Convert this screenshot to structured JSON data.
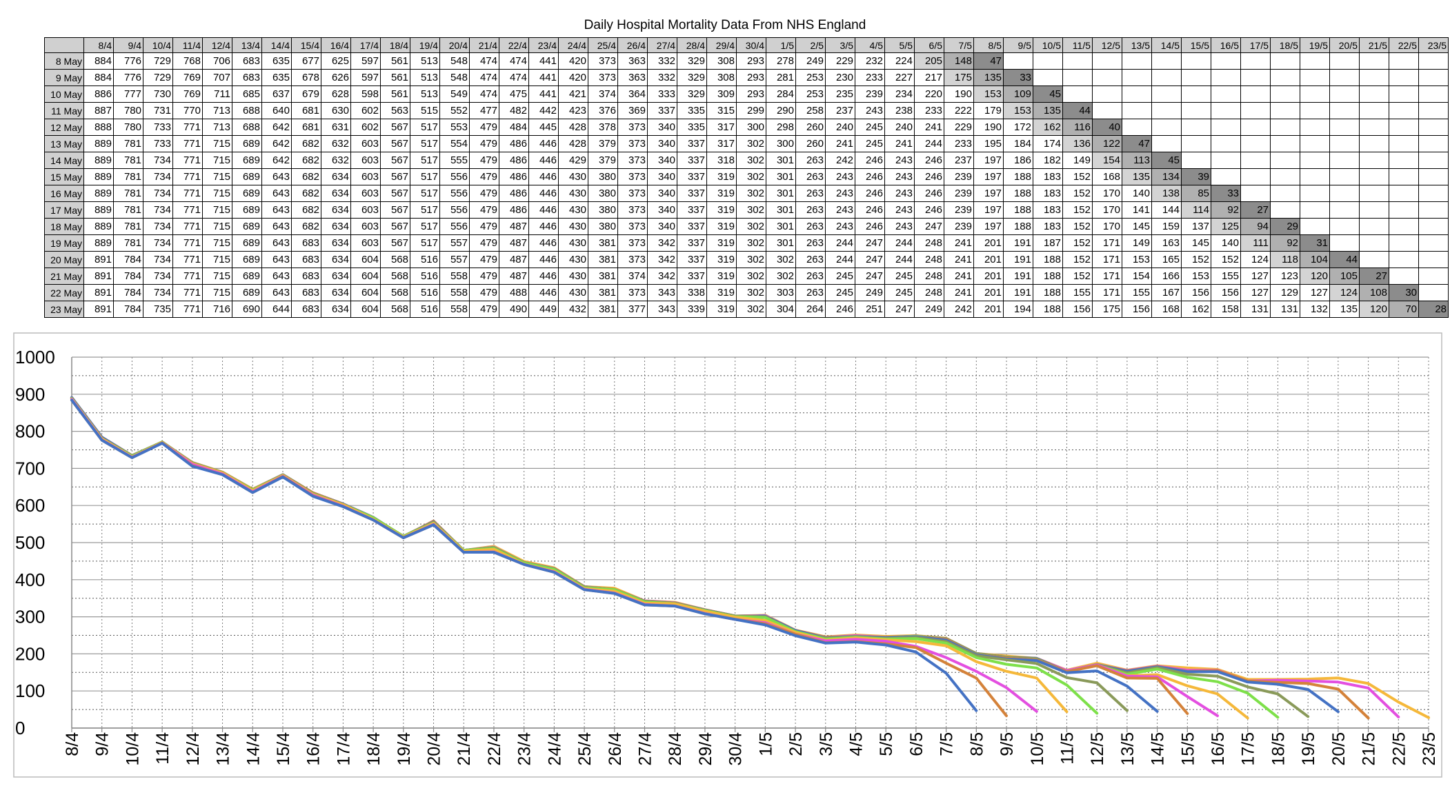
{
  "chart_data": {
    "type": "line",
    "title": "Daily Hospital Mortality Data From NHS England",
    "categories": [
      "8/4",
      "9/4",
      "10/4",
      "11/4",
      "12/4",
      "13/4",
      "14/4",
      "15/4",
      "16/4",
      "17/4",
      "18/4",
      "19/4",
      "20/4",
      "21/4",
      "22/4",
      "23/4",
      "24/4",
      "25/4",
      "26/4",
      "27/4",
      "28/4",
      "29/4",
      "30/4",
      "1/5",
      "2/5",
      "3/5",
      "4/5",
      "5/5",
      "6/5",
      "7/5",
      "8/5",
      "9/5",
      "10/5",
      "11/5",
      "12/5",
      "13/5",
      "14/5",
      "15/5",
      "16/5",
      "17/5",
      "18/5",
      "19/5",
      "20/5",
      "21/5",
      "22/5",
      "23/5"
    ],
    "ylim": [
      0,
      1000
    ],
    "yticks": [
      0,
      100,
      200,
      300,
      400,
      500,
      600,
      700,
      800,
      900,
      1000
    ],
    "grid": true,
    "series": [
      {
        "name": "8 May",
        "color": "#4472c4",
        "values": [
          884,
          776,
          729,
          768,
          706,
          683,
          635,
          677,
          625,
          597,
          561,
          513,
          548,
          474,
          474,
          441,
          420,
          373,
          363,
          332,
          329,
          308,
          293,
          278,
          249,
          229,
          232,
          224,
          205,
          148,
          47,
          null,
          null,
          null,
          null,
          null,
          null,
          null,
          null,
          null,
          null,
          null,
          null,
          null,
          null,
          null
        ]
      },
      {
        "name": "9 May",
        "color": "#d4823a",
        "values": [
          884,
          776,
          729,
          769,
          707,
          683,
          635,
          678,
          626,
          597,
          561,
          513,
          548,
          474,
          474,
          441,
          420,
          373,
          363,
          332,
          329,
          308,
          293,
          281,
          253,
          230,
          233,
          227,
          217,
          175,
          135,
          33,
          null,
          null,
          null,
          null,
          null,
          null,
          null,
          null,
          null,
          null,
          null,
          null,
          null,
          null
        ]
      },
      {
        "name": "10 May",
        "color": "#e34fe0",
        "values": [
          886,
          777,
          730,
          769,
          711,
          685,
          637,
          679,
          628,
          598,
          561,
          513,
          549,
          474,
          475,
          441,
          421,
          374,
          364,
          333,
          329,
          309,
          293,
          284,
          253,
          235,
          239,
          234,
          220,
          190,
          153,
          109,
          45,
          null,
          null,
          null,
          null,
          null,
          null,
          null,
          null,
          null,
          null,
          null,
          null,
          null
        ]
      },
      {
        "name": "11 May",
        "color": "#f5b83a",
        "values": [
          887,
          780,
          731,
          770,
          713,
          688,
          640,
          681,
          630,
          602,
          563,
          515,
          552,
          477,
          482,
          442,
          423,
          376,
          369,
          337,
          335,
          315,
          299,
          290,
          258,
          237,
          243,
          238,
          233,
          222,
          179,
          153,
          135,
          44,
          null,
          null,
          null,
          null,
          null,
          null,
          null,
          null,
          null,
          null,
          null,
          null
        ]
      },
      {
        "name": "12 May",
        "color": "#7ee04a",
        "values": [
          888,
          780,
          733,
          771,
          713,
          688,
          642,
          681,
          631,
          602,
          567,
          517,
          553,
          479,
          484,
          445,
          428,
          378,
          373,
          340,
          335,
          317,
          300,
          298,
          260,
          240,
          245,
          240,
          241,
          229,
          190,
          172,
          162,
          116,
          40,
          null,
          null,
          null,
          null,
          null,
          null,
          null,
          null,
          null,
          null,
          null
        ]
      },
      {
        "name": "13 May",
        "color": "#8a9a5a",
        "values": [
          889,
          781,
          733,
          771,
          715,
          689,
          642,
          682,
          632,
          603,
          567,
          517,
          554,
          479,
          486,
          446,
          428,
          379,
          373,
          340,
          337,
          317,
          302,
          300,
          260,
          241,
          245,
          241,
          244,
          233,
          195,
          184,
          174,
          136,
          122,
          47,
          null,
          null,
          null,
          null,
          null,
          null,
          null,
          null,
          null,
          null
        ]
      },
      {
        "name": "14 May",
        "color": "#4472c4",
        "values": [
          889,
          781,
          734,
          771,
          715,
          689,
          642,
          682,
          632,
          603,
          567,
          517,
          555,
          479,
          486,
          446,
          429,
          379,
          373,
          340,
          337,
          318,
          302,
          301,
          263,
          242,
          246,
          243,
          246,
          237,
          197,
          186,
          182,
          149,
          154,
          113,
          45,
          null,
          null,
          null,
          null,
          null,
          null,
          null,
          null,
          null
        ]
      },
      {
        "name": "15 May",
        "color": "#d4823a",
        "values": [
          889,
          781,
          734,
          771,
          715,
          689,
          643,
          682,
          634,
          603,
          567,
          517,
          556,
          479,
          486,
          446,
          430,
          380,
          373,
          340,
          337,
          319,
          302,
          301,
          263,
          243,
          246,
          243,
          246,
          239,
          197,
          188,
          183,
          152,
          168,
          135,
          134,
          39,
          null,
          null,
          null,
          null,
          null,
          null,
          null,
          null
        ]
      },
      {
        "name": "16 May",
        "color": "#e34fe0",
        "values": [
          889,
          781,
          734,
          771,
          715,
          689,
          643,
          682,
          634,
          603,
          567,
          517,
          556,
          479,
          486,
          446,
          430,
          380,
          373,
          340,
          337,
          319,
          302,
          301,
          263,
          243,
          246,
          243,
          246,
          239,
          197,
          188,
          183,
          152,
          170,
          140,
          138,
          85,
          33,
          null,
          null,
          null,
          null,
          null,
          null,
          null
        ]
      },
      {
        "name": "17 May",
        "color": "#f5b83a",
        "values": [
          889,
          781,
          734,
          771,
          715,
          689,
          643,
          682,
          634,
          603,
          567,
          517,
          556,
          479,
          486,
          446,
          430,
          380,
          373,
          340,
          337,
          319,
          302,
          301,
          263,
          243,
          246,
          243,
          246,
          239,
          197,
          188,
          183,
          152,
          170,
          141,
          144,
          114,
          92,
          27,
          null,
          null,
          null,
          null,
          null,
          null
        ]
      },
      {
        "name": "18 May",
        "color": "#7ee04a",
        "values": [
          889,
          781,
          734,
          771,
          715,
          689,
          643,
          682,
          634,
          603,
          567,
          517,
          556,
          479,
          487,
          446,
          430,
          380,
          373,
          340,
          337,
          319,
          302,
          301,
          263,
          243,
          246,
          243,
          247,
          239,
          197,
          188,
          183,
          152,
          170,
          145,
          159,
          137,
          125,
          94,
          29,
          null,
          null,
          null,
          null,
          null
        ]
      },
      {
        "name": "19 May",
        "color": "#8a9a5a",
        "values": [
          889,
          781,
          734,
          771,
          715,
          689,
          643,
          683,
          634,
          603,
          567,
          517,
          557,
          479,
          487,
          446,
          430,
          381,
          373,
          342,
          337,
          319,
          302,
          301,
          263,
          244,
          247,
          244,
          248,
          241,
          201,
          191,
          187,
          152,
          171,
          149,
          163,
          145,
          140,
          111,
          92,
          31,
          null,
          null,
          null,
          null
        ]
      },
      {
        "name": "20 May",
        "color": "#4472c4",
        "values": [
          891,
          784,
          734,
          771,
          715,
          689,
          643,
          683,
          634,
          604,
          568,
          516,
          557,
          479,
          487,
          446,
          430,
          381,
          373,
          342,
          337,
          319,
          302,
          302,
          263,
          244,
          247,
          244,
          248,
          241,
          201,
          191,
          188,
          152,
          171,
          153,
          165,
          152,
          152,
          124,
          118,
          104,
          44,
          null,
          null,
          null
        ]
      },
      {
        "name": "21 May",
        "color": "#d4823a",
        "values": [
          891,
          784,
          734,
          771,
          715,
          689,
          643,
          683,
          634,
          604,
          568,
          516,
          558,
          479,
          487,
          446,
          430,
          381,
          374,
          342,
          337,
          319,
          302,
          302,
          263,
          245,
          247,
          245,
          248,
          241,
          201,
          191,
          188,
          152,
          171,
          154,
          166,
          153,
          155,
          127,
          123,
          120,
          105,
          27,
          null,
          null
        ]
      },
      {
        "name": "22 May",
        "color": "#e34fe0",
        "values": [
          891,
          784,
          734,
          771,
          715,
          689,
          643,
          683,
          634,
          604,
          568,
          516,
          558,
          479,
          488,
          446,
          430,
          381,
          373,
          343,
          338,
          319,
          302,
          303,
          263,
          245,
          249,
          245,
          248,
          241,
          201,
          191,
          188,
          155,
          171,
          155,
          167,
          156,
          156,
          127,
          129,
          127,
          124,
          108,
          30,
          null
        ]
      },
      {
        "name": "23 May",
        "color": "#f5b83a",
        "values": [
          891,
          784,
          735,
          771,
          716,
          690,
          644,
          683,
          634,
          604,
          568,
          516,
          558,
          479,
          490,
          449,
          432,
          381,
          377,
          343,
          339,
          319,
          302,
          304,
          264,
          246,
          251,
          247,
          249,
          242,
          201,
          194,
          188,
          156,
          175,
          156,
          168,
          162,
          158,
          131,
          131,
          132,
          135,
          120,
          70,
          28
        ]
      }
    ]
  }
}
